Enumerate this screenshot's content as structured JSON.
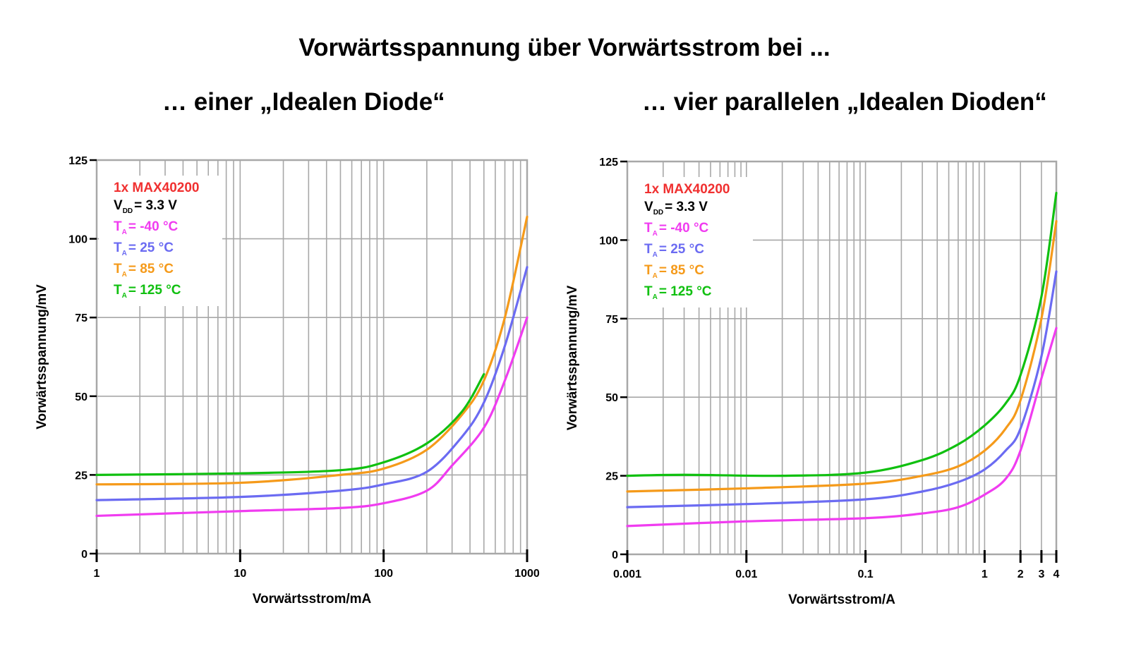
{
  "header": {
    "title": "Vorwärtsspannung über Vorwärtsstrom bei ...",
    "left_subtitle": "… einer „Idealen Diode“",
    "right_subtitle": "… vier parallelen „Idealen Dioden“"
  },
  "colors": {
    "minus40": "#f03cf0",
    "plus25": "#6b6bf2",
    "plus85": "#f59a1a",
    "plus125": "#10c010",
    "device": "#f03030",
    "grid": "#a8a8a8"
  },
  "legend": {
    "device": "1x MAX40200",
    "vdd_prefix": "V",
    "vdd_sub": "DD",
    "vdd_value": "= 3.3 V",
    "ta_prefix": "T",
    "ta_sub": "A",
    "entries": [
      {
        "label": "=  -40 °C",
        "color": "#f03cf0"
      },
      {
        "label": "=   25 °C",
        "color": "#6b6bf2"
      },
      {
        "label": "=   85 °C",
        "color": "#f59a1a"
      },
      {
        "label": "= 125 °C",
        "color": "#10c010"
      }
    ]
  },
  "chart_data": [
    {
      "type": "line",
      "title": "… einer „Idealen Diode“",
      "xlabel": "Vorwärtsstrom/mA",
      "ylabel": "Vorwärtsspannung/mV",
      "xscale": "log",
      "xlim": [
        1,
        1000
      ],
      "ylim": [
        0,
        125
      ],
      "grid": true,
      "x_ticks": [
        "1",
        "10",
        "100",
        "1000"
      ],
      "y_ticks": [
        "0",
        "25",
        "50",
        "75",
        "100",
        "125"
      ],
      "legend_position": "upper-left",
      "series": [
        {
          "name": "T_A = -40 °C",
          "color": "#f03cf0",
          "x": [
            1,
            10,
            50,
            100,
            200,
            300,
            500,
            700,
            1000
          ],
          "y": [
            12,
            13.5,
            14.5,
            16,
            20,
            28,
            40,
            55,
            75
          ]
        },
        {
          "name": "T_A = 25 °C",
          "color": "#6b6bf2",
          "x": [
            1,
            10,
            50,
            100,
            200,
            350,
            500,
            700,
            1000
          ],
          "y": [
            17,
            18,
            20,
            22,
            26,
            37,
            48,
            66,
            91
          ]
        },
        {
          "name": "T_A = 85 °C",
          "color": "#f59a1a",
          "x": [
            1,
            10,
            50,
            100,
            200,
            350,
            500,
            700,
            1000
          ],
          "y": [
            22,
            22.5,
            25,
            27,
            33,
            44,
            55,
            75,
            107
          ]
        },
        {
          "name": "T_A = 125 °C",
          "color": "#10c010",
          "x": [
            1,
            10,
            50,
            100,
            200,
            350,
            500
          ],
          "y": [
            25,
            25.5,
            26.5,
            29,
            35,
            45,
            57
          ]
        }
      ],
      "annotations": [
        "1x MAX40200",
        "V_DD = 3.3 V"
      ]
    },
    {
      "type": "line",
      "title": "… vier parallelen „Idealen Dioden“",
      "xlabel": "Vorwärtsstrom/A",
      "ylabel": "Vorwärtsspannung/mV",
      "xscale": "log",
      "xlim": [
        0.001,
        4
      ],
      "ylim": [
        0,
        125
      ],
      "grid": true,
      "x_ticks": [
        "0.001",
        "0.01",
        "0.1",
        "1",
        "2",
        "3",
        "4"
      ],
      "y_ticks": [
        "0",
        "25",
        "50",
        "75",
        "100",
        "125"
      ],
      "legend_position": "upper-left",
      "series": [
        {
          "name": "T_A = -40 °C",
          "color": "#f03cf0",
          "x": [
            0.001,
            0.01,
            0.1,
            0.3,
            0.6,
            1,
            1.5,
            2,
            3,
            4
          ],
          "y": [
            9,
            10.5,
            11.5,
            13,
            15,
            19,
            24,
            33,
            56,
            72
          ]
        },
        {
          "name": "T_A = 25 °C",
          "color": "#6b6bf2",
          "x": [
            0.001,
            0.01,
            0.1,
            0.3,
            0.6,
            1,
            1.5,
            2,
            3,
            4
          ],
          "y": [
            15,
            16,
            17.5,
            20,
            23,
            27,
            33,
            40,
            63,
            90
          ]
        },
        {
          "name": "T_A = 85 °C",
          "color": "#f59a1a",
          "x": [
            0.001,
            0.01,
            0.1,
            0.3,
            0.6,
            1,
            1.5,
            2,
            3,
            4
          ],
          "y": [
            20,
            21,
            22.5,
            25,
            28,
            33,
            40,
            49,
            75,
            106
          ]
        },
        {
          "name": "T_A = 125 °C",
          "color": "#10c010",
          "x": [
            0.001,
            0.003,
            0.02,
            0.1,
            0.3,
            0.6,
            1,
            1.5,
            2,
            3,
            4
          ],
          "y": [
            25,
            25.3,
            25,
            26,
            30,
            35,
            41,
            48,
            57,
            82,
            115
          ]
        }
      ],
      "annotations": [
        "1x MAX40200",
        "V_DD = 3.3 V"
      ]
    }
  ]
}
